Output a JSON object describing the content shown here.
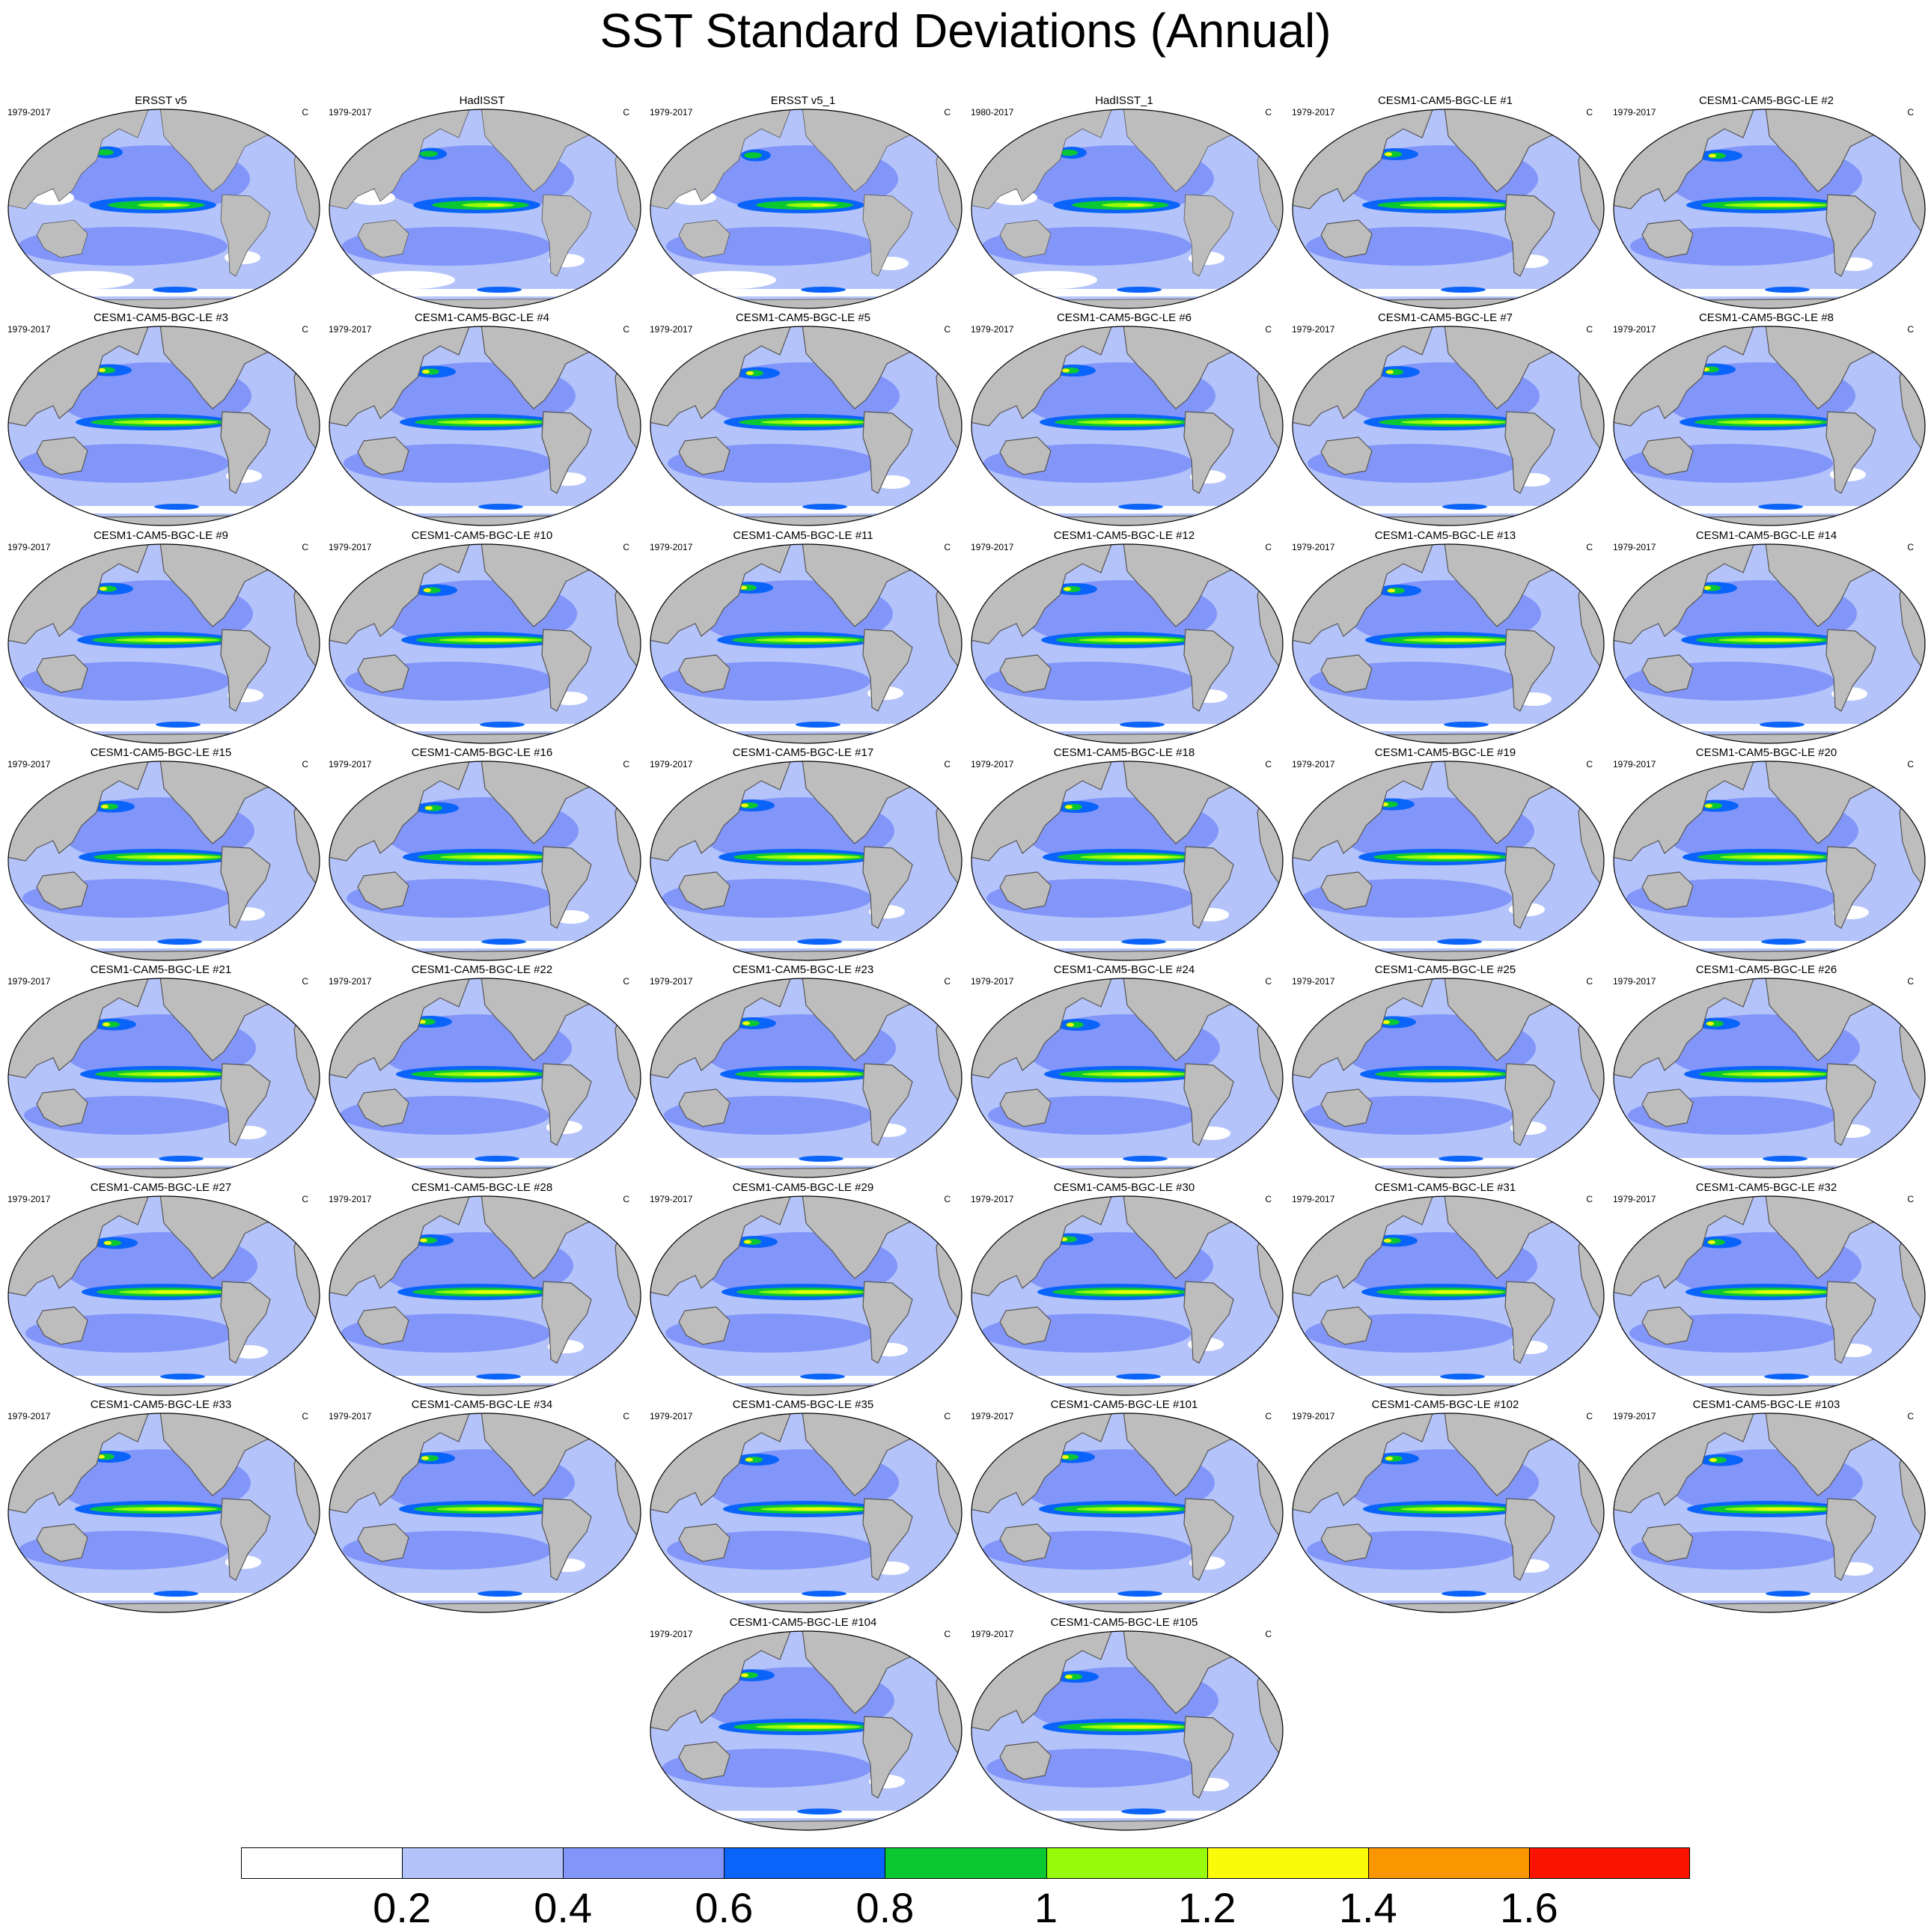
{
  "title": "SST Standard Deviations (Annual)",
  "colors": {
    "land": "#bdbdbd",
    "ocean_levels": [
      "#ffffff",
      "#b4c3fa",
      "#8296fa",
      "#0a64fa",
      "#0ac832",
      "#96fa0a",
      "#fafa0a",
      "#fa9600",
      "#fa1400"
    ]
  },
  "colorbar": {
    "labels": [
      "0.2",
      "0.4",
      "0.6",
      "0.8",
      "1",
      "1.2",
      "1.4",
      "1.6"
    ]
  },
  "panels": [
    {
      "title": "ERSST v5",
      "years": "1979-2017",
      "units": "C"
    },
    {
      "title": "HadISST",
      "years": "1979-2017",
      "units": "C"
    },
    {
      "title": "ERSST v5_1",
      "years": "1979-2017",
      "units": "C"
    },
    {
      "title": "HadISST_1",
      "years": "1980-2017",
      "units": "C"
    },
    {
      "title": "CESM1-CAM5-BGC-LE #1",
      "years": "1979-2017",
      "units": "C"
    },
    {
      "title": "CESM1-CAM5-BGC-LE #2",
      "years": "1979-2017",
      "units": "C"
    },
    {
      "title": "CESM1-CAM5-BGC-LE #3",
      "years": "1979-2017",
      "units": "C"
    },
    {
      "title": "CESM1-CAM5-BGC-LE #4",
      "years": "1979-2017",
      "units": "C"
    },
    {
      "title": "CESM1-CAM5-BGC-LE #5",
      "years": "1979-2017",
      "units": "C"
    },
    {
      "title": "CESM1-CAM5-BGC-LE #6",
      "years": "1979-2017",
      "units": "C"
    },
    {
      "title": "CESM1-CAM5-BGC-LE #7",
      "years": "1979-2017",
      "units": "C"
    },
    {
      "title": "CESM1-CAM5-BGC-LE #8",
      "years": "1979-2017",
      "units": "C"
    },
    {
      "title": "CESM1-CAM5-BGC-LE #9",
      "years": "1979-2017",
      "units": "C"
    },
    {
      "title": "CESM1-CAM5-BGC-LE #10",
      "years": "1979-2017",
      "units": "C"
    },
    {
      "title": "CESM1-CAM5-BGC-LE #11",
      "years": "1979-2017",
      "units": "C"
    },
    {
      "title": "CESM1-CAM5-BGC-LE #12",
      "years": "1979-2017",
      "units": "C"
    },
    {
      "title": "CESM1-CAM5-BGC-LE #13",
      "years": "1979-2017",
      "units": "C"
    },
    {
      "title": "CESM1-CAM5-BGC-LE #14",
      "years": "1979-2017",
      "units": "C"
    },
    {
      "title": "CESM1-CAM5-BGC-LE #15",
      "years": "1979-2017",
      "units": "C"
    },
    {
      "title": "CESM1-CAM5-BGC-LE #16",
      "years": "1979-2017",
      "units": "C"
    },
    {
      "title": "CESM1-CAM5-BGC-LE #17",
      "years": "1979-2017",
      "units": "C"
    },
    {
      "title": "CESM1-CAM5-BGC-LE #18",
      "years": "1979-2017",
      "units": "C"
    },
    {
      "title": "CESM1-CAM5-BGC-LE #19",
      "years": "1979-2017",
      "units": "C"
    },
    {
      "title": "CESM1-CAM5-BGC-LE #20",
      "years": "1979-2017",
      "units": "C"
    },
    {
      "title": "CESM1-CAM5-BGC-LE #21",
      "years": "1979-2017",
      "units": "C"
    },
    {
      "title": "CESM1-CAM5-BGC-LE #22",
      "years": "1979-2017",
      "units": "C"
    },
    {
      "title": "CESM1-CAM5-BGC-LE #23",
      "years": "1979-2017",
      "units": "C"
    },
    {
      "title": "CESM1-CAM5-BGC-LE #24",
      "years": "1979-2017",
      "units": "C"
    },
    {
      "title": "CESM1-CAM5-BGC-LE #25",
      "years": "1979-2017",
      "units": "C"
    },
    {
      "title": "CESM1-CAM5-BGC-LE #26",
      "years": "1979-2017",
      "units": "C"
    },
    {
      "title": "CESM1-CAM5-BGC-LE #27",
      "years": "1979-2017",
      "units": "C"
    },
    {
      "title": "CESM1-CAM5-BGC-LE #28",
      "years": "1979-2017",
      "units": "C"
    },
    {
      "title": "CESM1-CAM5-BGC-LE #29",
      "years": "1979-2017",
      "units": "C"
    },
    {
      "title": "CESM1-CAM5-BGC-LE #30",
      "years": "1979-2017",
      "units": "C"
    },
    {
      "title": "CESM1-CAM5-BGC-LE #31",
      "years": "1979-2017",
      "units": "C"
    },
    {
      "title": "CESM1-CAM5-BGC-LE #32",
      "years": "1979-2017",
      "units": "C"
    },
    {
      "title": "CESM1-CAM5-BGC-LE #33",
      "years": "1979-2017",
      "units": "C"
    },
    {
      "title": "CESM1-CAM5-BGC-LE #34",
      "years": "1979-2017",
      "units": "C"
    },
    {
      "title": "CESM1-CAM5-BGC-LE #35",
      "years": "1979-2017",
      "units": "C"
    },
    {
      "title": "CESM1-CAM5-BGC-LE #101",
      "years": "1979-2017",
      "units": "C"
    },
    {
      "title": "CESM1-CAM5-BGC-LE #102",
      "years": "1979-2017",
      "units": "C"
    },
    {
      "title": "CESM1-CAM5-BGC-LE #103",
      "years": "1979-2017",
      "units": "C"
    },
    {
      "title": "CESM1-CAM5-BGC-LE #104",
      "years": "1979-2017",
      "units": "C"
    },
    {
      "title": "CESM1-CAM5-BGC-LE #105",
      "years": "1979-2017",
      "units": "C"
    }
  ]
}
